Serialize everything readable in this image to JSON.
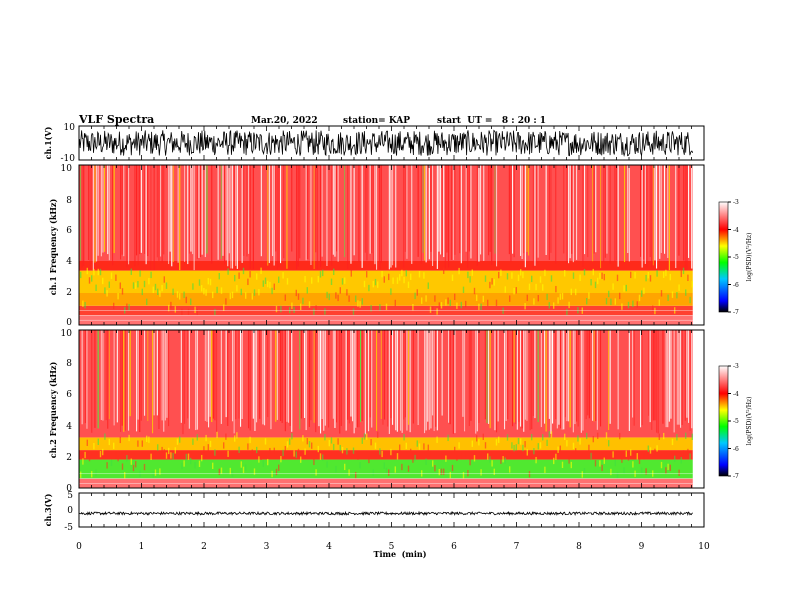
{
  "header": {
    "title": "VLF Spectra",
    "date": "Mar.20, 2022",
    "station": "station= KAP",
    "start": "start  UT =   8 : 20 : 1"
  },
  "chart_data": [
    {
      "type": "line",
      "name": "waveform-ch1",
      "ylabel": "ch.1(V)",
      "ylim": [
        -10,
        10
      ],
      "xlim": [
        0,
        10
      ],
      "ytick_labels": [
        "10",
        "-10"
      ],
      "data_extent_min": 9.82,
      "approx_amplitude": 7.5
    },
    {
      "type": "heatmap",
      "name": "spectrogram-ch1",
      "ylabel": "ch.1 Frequency (kHz)",
      "ylim": [
        0,
        10
      ],
      "xlim": [
        0,
        10
      ],
      "ytick_labels": [
        "0",
        "2",
        "4",
        "6",
        "8",
        "10"
      ],
      "colorbar": {
        "label": "log(PSD)(V²/Hz)",
        "range": [
          -7,
          -3
        ],
        "tick_labels": [
          "-3",
          "-4",
          "-5",
          "-6",
          "-7"
        ],
        "colors": [
          "#000000",
          "#0000ff",
          "#00c8ff",
          "#00ff00",
          "#ffff00",
          "#ff0000",
          "#ffffff"
        ]
      },
      "bands": [
        {
          "f_lo": 0.0,
          "f_hi": 0.6,
          "color": "#ff7070"
        },
        {
          "f_lo": 0.6,
          "f_hi": 1.2,
          "color": "#ff4030"
        },
        {
          "f_lo": 1.2,
          "f_hi": 2.0,
          "color": "#ffa500"
        },
        {
          "f_lo": 2.0,
          "f_hi": 3.4,
          "color": "#ffc800"
        },
        {
          "f_lo": 3.4,
          "f_hi": 4.0,
          "color": "#ff2a1a"
        },
        {
          "f_lo": 4.0,
          "f_hi": 10.0,
          "color": "#ff5050"
        }
      ]
    },
    {
      "type": "heatmap",
      "name": "spectrogram-ch2",
      "ylabel": "ch.2 Frequency (kHz)",
      "ylim": [
        0,
        10
      ],
      "xlim": [
        0,
        10
      ],
      "ytick_labels": [
        "0",
        "2",
        "4",
        "6",
        "8",
        "10"
      ],
      "colorbar": {
        "label": "log(PSD)(V²/Hz)",
        "range": [
          -7,
          -3
        ],
        "tick_labels": [
          "-3",
          "-4",
          "-5",
          "-6",
          "-7"
        ],
        "colors": [
          "#000000",
          "#0000ff",
          "#00c8ff",
          "#00ff00",
          "#ffff00",
          "#ff0000",
          "#ffffff"
        ]
      },
      "bands": [
        {
          "f_lo": 0.0,
          "f_hi": 0.6,
          "color": "#ff7070"
        },
        {
          "f_lo": 0.6,
          "f_hi": 1.8,
          "color": "#50e830"
        },
        {
          "f_lo": 1.8,
          "f_hi": 2.4,
          "color": "#ff3020"
        },
        {
          "f_lo": 2.4,
          "f_hi": 3.2,
          "color": "#ffc000"
        },
        {
          "f_lo": 3.2,
          "f_hi": 10.0,
          "color": "#ff5050"
        }
      ]
    },
    {
      "type": "line",
      "name": "waveform-ch3",
      "ylabel": "ch.3(V)",
      "ylim": [
        -5,
        5
      ],
      "xlim": [
        0,
        10
      ],
      "ytick_labels": [
        "5",
        "0",
        "-5"
      ],
      "data_extent_min": 9.82,
      "approx_amplitude": 0.4,
      "approx_offset": -1.0
    }
  ],
  "x_axis": {
    "label": "Time  (min)",
    "ticks": [
      "0",
      "1",
      "2",
      "3",
      "4",
      "5",
      "6",
      "7",
      "8",
      "9",
      "10"
    ]
  }
}
